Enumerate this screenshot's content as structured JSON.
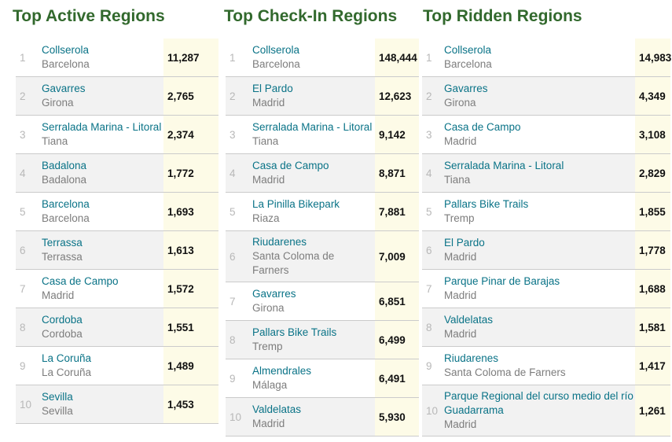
{
  "colors": {
    "title_green": "#32692d",
    "link_teal": "#0a7387",
    "city_gray": "#7d7d7d",
    "rank_gray": "#b8b8b8",
    "value_bg": "#fdfbe7",
    "alt_row_bg": "#f2f2f2",
    "border": "#cbcbcb",
    "value_text": "#111111"
  },
  "tables": [
    {
      "title": "Top Active Regions",
      "rows": [
        {
          "rank": "1",
          "region": "Collserola",
          "city": "Barcelona",
          "value": "11,287"
        },
        {
          "rank": "2",
          "region": "Gavarres",
          "city": "Girona",
          "value": "2,765"
        },
        {
          "rank": "3",
          "region": "Serralada Marina - Litoral",
          "city": "Tiana",
          "value": "2,374"
        },
        {
          "rank": "4",
          "region": "Badalona",
          "city": "Badalona",
          "value": "1,772"
        },
        {
          "rank": "5",
          "region": "Barcelona",
          "city": "Barcelona",
          "value": "1,693"
        },
        {
          "rank": "6",
          "region": "Terrassa",
          "city": "Terrassa",
          "value": "1,613"
        },
        {
          "rank": "7",
          "region": "Casa de Campo",
          "city": "Madrid",
          "value": "1,572"
        },
        {
          "rank": "8",
          "region": "Cordoba",
          "city": "Cordoba",
          "value": "1,551"
        },
        {
          "rank": "9",
          "region": "La Coruña",
          "city": "La Coruña",
          "value": "1,489"
        },
        {
          "rank": "10",
          "region": "Sevilla",
          "city": "Sevilla",
          "value": "1,453"
        }
      ]
    },
    {
      "title": "Top Check-In Regions",
      "rows": [
        {
          "rank": "1",
          "region": "Collserola",
          "city": "Barcelona",
          "value": "148,444"
        },
        {
          "rank": "2",
          "region": "El Pardo",
          "city": "Madrid",
          "value": "12,623"
        },
        {
          "rank": "3",
          "region": "Serralada Marina - Litoral",
          "city": "Tiana",
          "value": "9,142"
        },
        {
          "rank": "4",
          "region": "Casa de Campo",
          "city": "Madrid",
          "value": "8,871"
        },
        {
          "rank": "5",
          "region": "La Pinilla Bikepark",
          "city": "Riaza",
          "value": "7,881"
        },
        {
          "rank": "6",
          "region": "Riudarenes",
          "city": "Santa Coloma de Farners",
          "value": "7,009"
        },
        {
          "rank": "7",
          "region": "Gavarres",
          "city": "Girona",
          "value": "6,851"
        },
        {
          "rank": "8",
          "region": "Pallars Bike Trails",
          "city": "Tremp",
          "value": "6,499"
        },
        {
          "rank": "9",
          "region": "Almendrales",
          "city": "Málaga",
          "value": "6,491"
        },
        {
          "rank": "10",
          "region": "Valdelatas",
          "city": "Madrid",
          "value": "5,930"
        }
      ]
    },
    {
      "title": "Top Ridden Regions",
      "rows": [
        {
          "rank": "1",
          "region": "Collserola",
          "city": "Barcelona",
          "value": "14,983"
        },
        {
          "rank": "2",
          "region": "Gavarres",
          "city": "Girona",
          "value": "4,349"
        },
        {
          "rank": "3",
          "region": "Casa de Campo",
          "city": "Madrid",
          "value": "3,108"
        },
        {
          "rank": "4",
          "region": "Serralada Marina - Litoral",
          "city": "Tiana",
          "value": "2,829"
        },
        {
          "rank": "5",
          "region": "Pallars Bike Trails",
          "city": "Tremp",
          "value": "1,855"
        },
        {
          "rank": "6",
          "region": "El Pardo",
          "city": "Madrid",
          "value": "1,778"
        },
        {
          "rank": "7",
          "region": "Parque Pinar de Barajas",
          "city": "Madrid",
          "value": "1,688"
        },
        {
          "rank": "8",
          "region": "Valdelatas",
          "city": "Madrid",
          "value": "1,581"
        },
        {
          "rank": "9",
          "region": "Riudarenes",
          "city": "Santa Coloma de Farners",
          "value": "1,417"
        },
        {
          "rank": "10",
          "region": "Parque Regional del curso medio del río Guadarrama",
          "city": "Madrid",
          "value": "1,261"
        }
      ]
    }
  ]
}
